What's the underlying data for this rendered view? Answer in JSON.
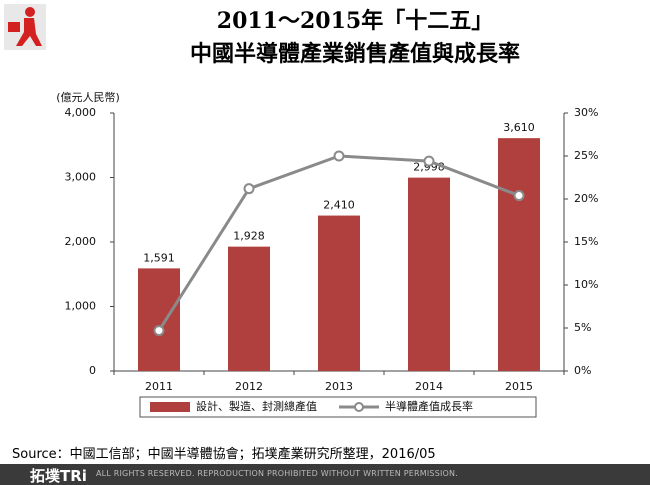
{
  "chart_data": {
    "type": "bar",
    "title": "2011～2015年「十二五」",
    "subtitle": "中國半導體產業銷售產值與成長率",
    "y_unit_label": "(億元人民幣)",
    "categories": [
      "2011",
      "2012",
      "2013",
      "2014",
      "2015"
    ],
    "series": [
      {
        "name": "設計、製造、封測總產值",
        "type": "bar",
        "color": "#b0403e",
        "values": [
          1591,
          1928,
          2410,
          2998,
          3610
        ],
        "value_labels": [
          "1,591",
          "1,928",
          "2,410",
          "2,998",
          "3,610"
        ]
      },
      {
        "name": "半導體產值成長率",
        "type": "line",
        "color": "#8a8a8a",
        "axis": "y2",
        "values": [
          4.7,
          21.2,
          25.0,
          24.4,
          20.4
        ]
      }
    ],
    "ylim": [
      0,
      4000
    ],
    "yticks": [
      0,
      {
        "value": 1000,
        "label": "1,000"
      },
      {
        "value": 2000,
        "label": "2,000"
      },
      {
        "value": 3000,
        "label": "3,000"
      },
      {
        "value": 4000,
        "label": "4,000"
      }
    ],
    "y2lim": [
      0,
      30
    ],
    "y2ticks": [
      {
        "value": 0,
        "label": "0%"
      },
      {
        "value": 5,
        "label": "5%"
      },
      {
        "value": 10,
        "label": "10%"
      },
      {
        "value": 15,
        "label": "15%"
      },
      {
        "value": 20,
        "label": "20%"
      },
      {
        "value": 25,
        "label": "25%"
      },
      {
        "value": 30,
        "label": "30%"
      }
    ],
    "grid": false,
    "legend": "bottom"
  },
  "source": "Source：中國工信部；中國半導體協會；拓墣產業研究所整理，2016/05",
  "footer": {
    "logo": "拓墣TRi",
    "notice": "ALL RIGHTS RESERVED. REPRODUCTION PROHIBITED WITHOUT WRITTEN PERMISSION."
  }
}
